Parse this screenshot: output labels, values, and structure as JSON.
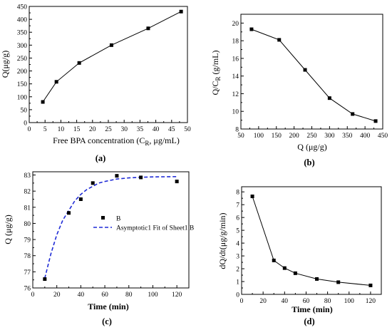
{
  "chart_data": [
    {
      "id": "a",
      "type": "line",
      "caption": "(a)",
      "ylabel": "Q(μg/g)",
      "xlabel_parts": [
        "Free BPA concentration (C",
        "R",
        ", μg/mL)"
      ],
      "xlim": [
        0,
        50
      ],
      "ylim": [
        0,
        450
      ],
      "xticks": [
        0,
        5,
        10,
        15,
        20,
        25,
        30,
        35,
        40,
        45,
        50
      ],
      "yticks": [
        0,
        50,
        100,
        150,
        200,
        250,
        300,
        350,
        400,
        450
      ],
      "series": [
        {
          "x": [
            4.3,
            8.6,
            15.8,
            26.0,
            37.6,
            48.0
          ],
          "values": [
            80,
            158,
            231,
            300,
            365,
            430
          ],
          "color": "#000000",
          "marker": "square"
        }
      ]
    },
    {
      "id": "b",
      "type": "line",
      "caption": "(b)",
      "ylabel_parts": [
        "Q/C",
        "R",
        " (g/mL)"
      ],
      "xlabel": "Q  (μg/g)",
      "xlim": [
        50,
        450
      ],
      "ylim": [
        8,
        21
      ],
      "xticks": [
        50,
        100,
        150,
        200,
        250,
        300,
        350,
        400,
        450
      ],
      "yticks": [
        8,
        10,
        12,
        14,
        16,
        18,
        20
      ],
      "series": [
        {
          "x": [
            80,
            158,
            231,
            300,
            365,
            430
          ],
          "values": [
            19.3,
            18.1,
            14.7,
            11.5,
            9.7,
            8.9
          ],
          "color": "#000000",
          "marker": "square"
        }
      ]
    },
    {
      "id": "c",
      "type": "scatter",
      "caption": "(c)",
      "ylabel": "Q (μg/g)",
      "xlabel": "Time (min)",
      "xlim": [
        0,
        130
      ],
      "ylim": [
        76,
        83.2
      ],
      "xticks": [
        0,
        20,
        40,
        60,
        80,
        100,
        120
      ],
      "yticks": [
        76,
        77,
        78,
        79,
        80,
        81,
        82,
        83
      ],
      "legend": [
        {
          "label": "B",
          "kind": "marker"
        },
        {
          "label": "Asymptotic1 Fit of Sheet1 B",
          "kind": "dashed-line"
        }
      ],
      "series": [
        {
          "name": "B",
          "x": [
            10,
            30,
            40,
            50,
            70,
            90,
            120
          ],
          "values": [
            76.55,
            80.65,
            81.5,
            82.5,
            82.95,
            82.85,
            82.6
          ],
          "color": "#000000",
          "marker": "square"
        }
      ],
      "fit": {
        "name": "Asymptotic1 Fit of Sheet1 B",
        "x": [
          10,
          15,
          20,
          25,
          30,
          35,
          40,
          45,
          50,
          55,
          60,
          70,
          80,
          90,
          100,
          110,
          120
        ],
        "values": [
          76.6,
          78.1,
          79.3,
          80.2,
          80.8,
          81.4,
          81.8,
          82.1,
          82.3,
          82.5,
          82.6,
          82.75,
          82.82,
          82.86,
          82.88,
          82.89,
          82.9
        ],
        "color": "#1f2bd6",
        "style": "dashed"
      }
    },
    {
      "id": "d",
      "type": "line",
      "caption": "(d)",
      "ylabel": "dQ/dt(μg/g/min)",
      "xlabel": "Time (min)",
      "xlim": [
        0,
        130
      ],
      "ylim": [
        0,
        8.4
      ],
      "xticks": [
        0,
        20,
        40,
        60,
        80,
        100,
        120
      ],
      "yticks": [
        0,
        1,
        2,
        3,
        4,
        5,
        6,
        7,
        8
      ],
      "series": [
        {
          "x": [
            10,
            30,
            40,
            50,
            70,
            90,
            120
          ],
          "values": [
            7.65,
            2.65,
            2.05,
            1.65,
            1.2,
            0.95,
            0.7
          ],
          "color": "#000000",
          "marker": "square"
        }
      ]
    }
  ]
}
